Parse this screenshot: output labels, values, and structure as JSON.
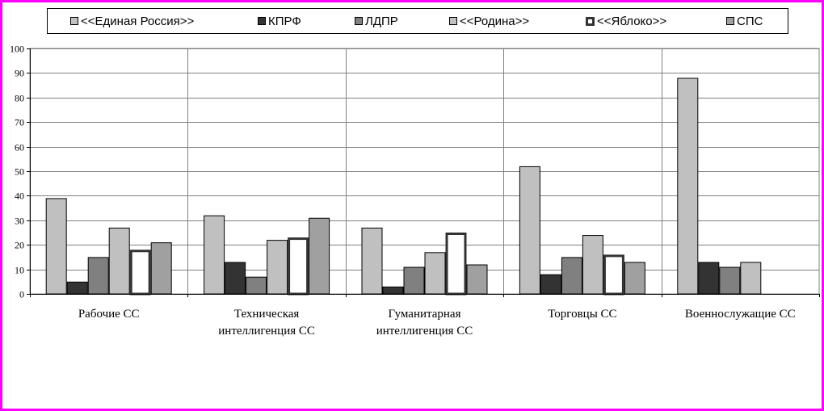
{
  "chart_data": {
    "type": "bar",
    "title": "",
    "xlabel": "",
    "ylabel": "",
    "ylim": [
      0,
      100
    ],
    "yticks": [
      0,
      10,
      20,
      30,
      40,
      50,
      60,
      70,
      80,
      90,
      100
    ],
    "grid": true,
    "legend_position": "top",
    "categories": [
      [
        "Рабочие СС"
      ],
      [
        "Техническая",
        "интеллигенция СС"
      ],
      [
        "Гуманитарная",
        "интеллигенция СС"
      ],
      [
        "Торговцы СС"
      ],
      [
        "Военнослужащие СС"
      ]
    ],
    "series": [
      {
        "name": "<<Единая Россия>>",
        "fill": "#c0c0c0",
        "stroke": "#000000",
        "style": "solid",
        "values": [
          39,
          32,
          27,
          52,
          88
        ]
      },
      {
        "name": "КПРФ",
        "fill": "#333333",
        "stroke": "#000000",
        "style": "solid",
        "values": [
          5,
          13,
          3,
          8,
          13
        ]
      },
      {
        "name": "ЛДПР",
        "fill": "#808080",
        "stroke": "#000000",
        "style": "solid",
        "values": [
          15,
          7,
          11,
          15,
          11
        ]
      },
      {
        "name": "<<Родина>>",
        "fill": "#c0c0c0",
        "stroke": "#000000",
        "style": "solid",
        "values": [
          27,
          22,
          17,
          24,
          13
        ]
      },
      {
        "name": "<<Яблоко>>",
        "fill": "#ffffff",
        "stroke": "#333333",
        "style": "outline",
        "values": [
          18,
          23,
          25,
          16,
          null
        ]
      },
      {
        "name": "СПС",
        "fill": "#a0a0a0",
        "stroke": "#000000",
        "style": "solid",
        "values": [
          21,
          31,
          12,
          13,
          null
        ]
      }
    ]
  },
  "colors": {
    "frame_border": "#ff00ff",
    "gridline": "#808080",
    "axis": "#000000"
  }
}
